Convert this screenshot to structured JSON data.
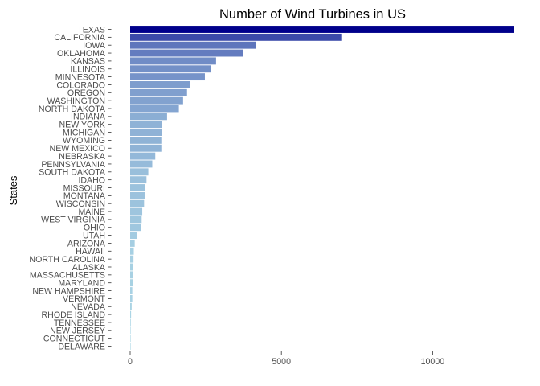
{
  "chart_data": {
    "type": "bar",
    "orientation": "horizontal",
    "title": "Number of Wind Turbines in US",
    "xlabel": "",
    "ylabel": "States",
    "categories": [
      "TEXAS",
      "CALIFORNIA",
      "IOWA",
      "OKLAHOMA",
      "KANSAS",
      "ILLINOIS",
      "MINNESOTA",
      "COLORADO",
      "OREGON",
      "WASHINGTON",
      "NORTH DAKOTA",
      "INDIANA",
      "NEW YORK",
      "MICHIGAN",
      "WYOMING",
      "NEW MEXICO",
      "NEBRASKA",
      "PENNSYLVANIA",
      "SOUTH DAKOTA",
      "IDAHO",
      "MISSOURI",
      "MONTANA",
      "WISCONSIN",
      "MAINE",
      "WEST VIRGINIA",
      "OHIO",
      "UTAH",
      "ARIZONA",
      "HAWAII",
      "NORTH CAROLINA",
      "ALASKA",
      "MASSACHUSETTS",
      "MARYLAND",
      "NEW HAMPSHIRE",
      "VERMONT",
      "NEVADA",
      "RHODE ISLAND",
      "TENNESSEE",
      "NEW JERSEY",
      "CONNECTICUT",
      "DELAWARE"
    ],
    "values": [
      12700,
      6980,
      4150,
      3730,
      2840,
      2670,
      2470,
      1970,
      1880,
      1750,
      1610,
      1220,
      1050,
      1050,
      1030,
      1030,
      830,
      730,
      600,
      540,
      500,
      480,
      460,
      400,
      380,
      350,
      230,
      150,
      120,
      110,
      100,
      90,
      80,
      70,
      70,
      50,
      30,
      20,
      5,
      3,
      2
    ],
    "xlim": [
      0,
      12700
    ],
    "xticks": [
      0,
      5000,
      10000
    ],
    "xtick_labels": [
      "0",
      "5000",
      "10000"
    ],
    "grid": false,
    "legend": "none",
    "color_low": "#add8e6",
    "color_high": "#00008b"
  }
}
